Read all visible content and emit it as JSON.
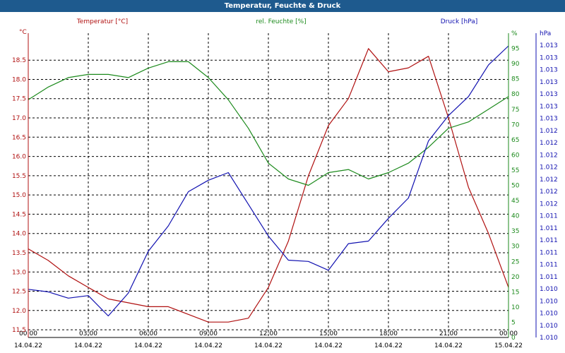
{
  "title": "Temperatur, Feuchte & Druck",
  "colors": {
    "titlebar": "#1e5a8e",
    "temperature": "#b01010",
    "humidity": "#1c8a1c",
    "pressure": "#1010b0",
    "grid": "#000000"
  },
  "chart_data": {
    "type": "line",
    "grid": true,
    "legend": "top",
    "x_ticks": [
      {
        "time": "00:00",
        "date": "14.04.22"
      },
      {
        "time": "03:00",
        "date": "14.04.22"
      },
      {
        "time": "06:00",
        "date": "14.04.22"
      },
      {
        "time": "09:00",
        "date": "14.04.22"
      },
      {
        "time": "12:00",
        "date": "14.04.22"
      },
      {
        "time": "15:00",
        "date": "14.04.22"
      },
      {
        "time": "18:00",
        "date": "14.04.22"
      },
      {
        "time": "21:00",
        "date": "14.04.22"
      },
      {
        "time": "00:00",
        "date": "15.04.22"
      }
    ],
    "x_hours": [
      0,
      1,
      2,
      3,
      4,
      5,
      6,
      7,
      8,
      9,
      10,
      11,
      12,
      13,
      14,
      15,
      16,
      17,
      18,
      19,
      20,
      21,
      22,
      23,
      24
    ],
    "axes": {
      "temperature": {
        "unit": "°C",
        "label": "Temperatur [°C]",
        "ylim": [
          11.3,
          19.2
        ],
        "ticks": [
          "11.5",
          "12.0",
          "12.5",
          "13.0",
          "13.5",
          "14.0",
          "14.5",
          "15.0",
          "15.5",
          "16.0",
          "16.5",
          "17.0",
          "17.5",
          "18.0",
          "18.5"
        ]
      },
      "humidity": {
        "unit": "%",
        "label": "rel. Feuchte [%]",
        "ylim": [
          0,
          96
        ],
        "ticks": [
          "0",
          "5",
          "10",
          "15",
          "20",
          "25",
          "30",
          "35",
          "40",
          "45",
          "50",
          "55",
          "60",
          "65",
          "70",
          "75",
          "80",
          "85",
          "90",
          "95",
          "%"
        ]
      },
      "pressure": {
        "unit": "hPa",
        "ylim": [
          0,
          24
        ],
        "ticks": [
          "1.010",
          "1.010",
          "1.010",
          "1.010",
          "1.010",
          "1.011",
          "1.011",
          "1.011",
          "1.011",
          "1.011",
          "1.011",
          "1.012",
          "1.012",
          "1.012",
          "1.012",
          "1.012",
          "1.012",
          "1.012",
          "1.013",
          "1.013",
          "1.013",
          "1.013",
          "1.013",
          "1.013",
          "1.013",
          "hPa"
        ]
      }
    },
    "series": [
      {
        "name": "Temperatur [°C]",
        "axis": "temperature",
        "values": [
          13.6,
          13.3,
          12.9,
          12.6,
          12.3,
          12.2,
          12.1,
          12.1,
          11.9,
          11.7,
          11.7,
          11.8,
          12.6,
          13.8,
          15.5,
          16.8,
          17.5,
          18.8,
          18.2,
          18.3,
          18.6,
          17.0,
          15.2,
          14.0,
          12.6
        ]
      },
      {
        "name": "rel. Feuchte [%]",
        "axis": "humidity",
        "values": [
          75,
          79,
          82,
          83,
          83,
          82,
          85,
          87,
          87,
          82,
          75,
          66,
          55,
          50,
          48,
          52,
          53,
          50,
          52,
          55,
          60,
          66,
          68,
          72,
          76
        ]
      },
      {
        "name": "Druck [hPa]",
        "axis": "pressure",
        "values": [
          3.8,
          3.6,
          3.1,
          3.3,
          1.7,
          3.5,
          6.8,
          8.8,
          11.5,
          12.4,
          13.0,
          10.5,
          8.0,
          6.1,
          6.0,
          5.3,
          7.4,
          7.6,
          9.4,
          11.0,
          15.5,
          17.5,
          19.0,
          21.5,
          23.0
        ]
      }
    ]
  }
}
